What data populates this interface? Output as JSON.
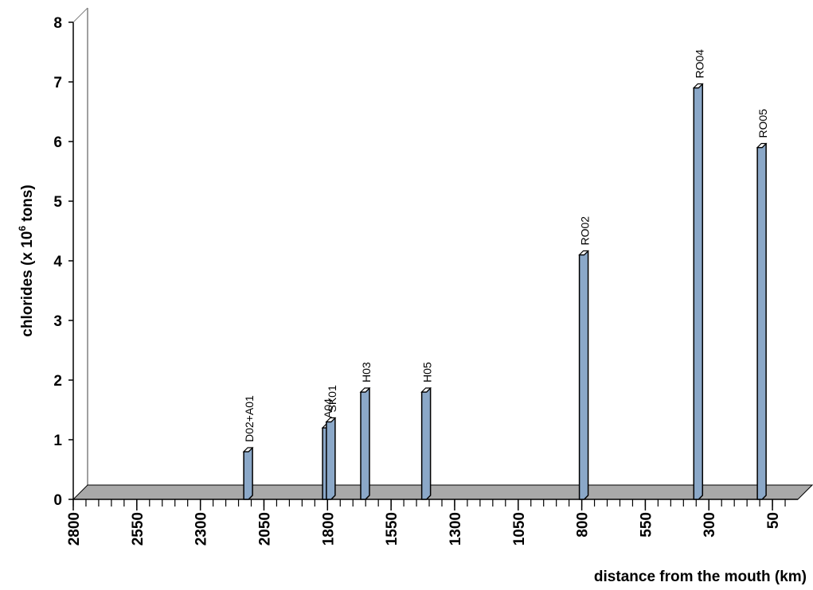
{
  "chart_data": {
    "type": "bar",
    "ylabel": {
      "main": "chlorides (x 10",
      "sup": "6",
      "unit": " tons)"
    },
    "xlabel": "distance from the mouth (km)",
    "ylim": [
      0,
      8
    ],
    "yticks": [
      "0",
      "1",
      "2",
      "3",
      "4",
      "5",
      "6",
      "7",
      "8"
    ],
    "xlim": [
      2800,
      -50
    ],
    "xticks": [
      "2800",
      "2550",
      "2300",
      "2050",
      "1800",
      "1550",
      "1300",
      "1050",
      "800",
      "550",
      "300",
      "50"
    ],
    "xtick_values": [
      2800,
      2550,
      2300,
      2050,
      1800,
      1550,
      1300,
      1050,
      800,
      550,
      300,
      50
    ],
    "grid": false,
    "bars": [
      {
        "label": "D02+A01",
        "x": 2120,
        "value": 0.8
      },
      {
        "label": "A04",
        "x": 1810,
        "value": 1.2
      },
      {
        "label": "SK01",
        "x": 1795,
        "value": 1.3
      },
      {
        "label": "H03",
        "x": 1660,
        "value": 1.8
      },
      {
        "label": "H05",
        "x": 1420,
        "value": 1.8
      },
      {
        "label": "RO02",
        "x": 800,
        "value": 4.1
      },
      {
        "label": "RO04",
        "x": 350,
        "value": 6.9
      },
      {
        "label": "RO05",
        "x": 100,
        "value": 5.9
      }
    ],
    "colors": {
      "bar": "#8ba8c8",
      "floor": "#a0a0a0",
      "wall": "#ffffff"
    }
  }
}
